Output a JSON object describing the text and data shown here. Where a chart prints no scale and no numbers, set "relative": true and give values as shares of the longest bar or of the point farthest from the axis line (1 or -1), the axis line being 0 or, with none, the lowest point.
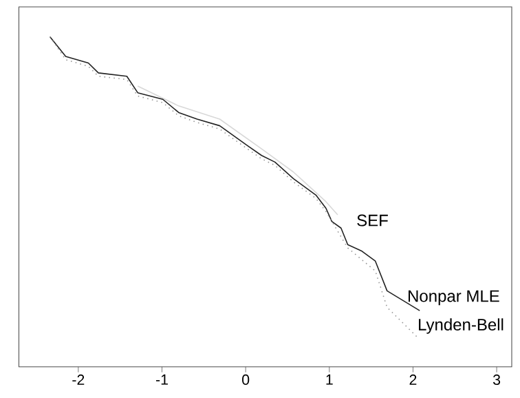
{
  "chart_data": {
    "type": "line",
    "relative": true,
    "xlim": [
      -2.71,
      3.18
    ],
    "xticks": [
      -2,
      -1,
      0,
      1,
      2,
      3
    ],
    "tick_labels": "x",
    "legend": false,
    "series": [
      {
        "name": "SEF",
        "color": "#d8d8d8",
        "line_style": "solid",
        "x": [
          -1.29,
          -0.8,
          -0.31,
          0.19,
          0.57,
          0.96,
          1.1
        ],
        "values": [
          0.85,
          0.79,
          0.75,
          0.66,
          0.59,
          0.5,
          0.46
        ]
      },
      {
        "name": "Nonpar MLE",
        "color": "#222222",
        "line_style": "solid",
        "x": [
          -2.34,
          -2.15,
          -1.88,
          -1.76,
          -1.42,
          -1.29,
          -0.99,
          -0.8,
          -0.58,
          -0.31,
          0.02,
          0.19,
          0.35,
          0.57,
          0.84,
          0.96,
          1.03,
          1.14,
          1.22,
          1.39,
          1.55,
          1.69,
          2.08
        ],
        "values": [
          1.0,
          0.94,
          0.92,
          0.89,
          0.88,
          0.83,
          0.81,
          0.77,
          0.75,
          0.73,
          0.67,
          0.64,
          0.62,
          0.57,
          0.52,
          0.48,
          0.44,
          0.42,
          0.37,
          0.35,
          0.32,
          0.23,
          0.17
        ]
      },
      {
        "name": "Lynden-Bell",
        "color": "#999999",
        "line_style": "dotted",
        "x": [
          -2.34,
          -2.15,
          -1.88,
          -1.76,
          -1.42,
          -1.29,
          -0.99,
          -0.8,
          -0.58,
          -0.31,
          0.02,
          0.19,
          0.35,
          0.57,
          0.84,
          0.96,
          1.22,
          1.55,
          1.69,
          2.05
        ],
        "values": [
          1.0,
          0.93,
          0.91,
          0.88,
          0.87,
          0.82,
          0.8,
          0.76,
          0.74,
          0.72,
          0.66,
          0.63,
          0.61,
          0.56,
          0.51,
          0.47,
          0.36,
          0.29,
          0.18,
          0.09
        ]
      }
    ]
  }
}
